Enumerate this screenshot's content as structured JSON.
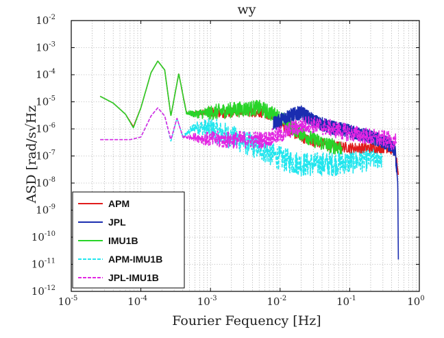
{
  "chart_data": {
    "type": "line",
    "title": "wy",
    "xlabel": "Fourier Fequency [Hz]",
    "ylabel": "ASD [rad/s√Hz",
    "x_scale": "log",
    "y_scale": "log",
    "xlim": [
      1e-05,
      1
    ],
    "ylim": [
      1e-12,
      0.01
    ],
    "grid": true,
    "legend_position": "bottom-left",
    "x_ticks": [
      {
        "base": "10",
        "exp": "-5"
      },
      {
        "base": "10",
        "exp": "-4"
      },
      {
        "base": "10",
        "exp": "-3"
      },
      {
        "base": "10",
        "exp": "-2"
      },
      {
        "base": "10",
        "exp": "-1"
      },
      {
        "base": "10",
        "exp": "0"
      }
    ],
    "y_ticks": [
      {
        "base": "10",
        "exp": "-12"
      },
      {
        "base": "10",
        "exp": "-11"
      },
      {
        "base": "10",
        "exp": "-10"
      },
      {
        "base": "10",
        "exp": "-9"
      },
      {
        "base": "10",
        "exp": "-8"
      },
      {
        "base": "10",
        "exp": "-7"
      },
      {
        "base": "10",
        "exp": "-6"
      },
      {
        "base": "10",
        "exp": "-5"
      },
      {
        "base": "10",
        "exp": "-4"
      },
      {
        "base": "10",
        "exp": "-3"
      },
      {
        "base": "10",
        "exp": "-2"
      }
    ],
    "series": [
      {
        "name": "APM",
        "color": "#e01b1b",
        "dash": "solid",
        "noise": 0.12,
        "points": [
          [
            2.6e-05,
            1.6e-05
          ],
          [
            4e-05,
            9e-06
          ],
          [
            6e-05,
            3.5e-06
          ],
          [
            7.8e-05,
            1.2e-06
          ],
          [
            0.0001,
            6e-06
          ],
          [
            0.00014,
            0.00012
          ],
          [
            0.000175,
            0.00032
          ],
          [
            0.00022,
            0.00015
          ],
          [
            0.00027,
            3e-06
          ],
          [
            0.00035,
            0.00011
          ],
          [
            0.00045,
            4e-06
          ],
          [
            0.0006,
            3.5e-06
          ],
          [
            0.0008,
            4.5e-06
          ],
          [
            0.0015,
            4e-06
          ],
          [
            0.003,
            4.5e-06
          ],
          [
            0.006,
            4e-06
          ],
          [
            0.01,
            1.6e-06
          ],
          [
            0.015,
            7e-07
          ],
          [
            0.025,
            4e-07
          ],
          [
            0.05,
            2.5e-07
          ],
          [
            0.1,
            2e-07
          ],
          [
            0.2,
            2e-07
          ],
          [
            0.35,
            2e-07
          ],
          [
            0.45,
            1.5e-07
          ],
          [
            0.5,
            2e-08
          ]
        ]
      },
      {
        "name": "JPL",
        "color": "#1a2db0",
        "dash": "solid",
        "noise": 0.16,
        "points": [
          [
            0.008,
            1.5e-06
          ],
          [
            0.013,
            3e-06
          ],
          [
            0.02,
            4e-06
          ],
          [
            0.03,
            2e-06
          ],
          [
            0.05,
            1.2e-06
          ],
          [
            0.1,
            8e-07
          ],
          [
            0.2,
            5e-07
          ],
          [
            0.35,
            3e-07
          ],
          [
            0.45,
            1.5e-07
          ],
          [
            0.49,
            1e-08
          ],
          [
            0.5,
            1.5e-11
          ]
        ]
      },
      {
        "name": "IMU1B",
        "color": "#28d428",
        "dash": "solid",
        "noise": 0.18,
        "points": [
          [
            2.6e-05,
            1.6e-05
          ],
          [
            4e-05,
            9e-06
          ],
          [
            6e-05,
            3.5e-06
          ],
          [
            7.8e-05,
            1.1e-06
          ],
          [
            0.0001,
            6e-06
          ],
          [
            0.00014,
            0.00012
          ],
          [
            0.000175,
            0.00032
          ],
          [
            0.00022,
            0.00015
          ],
          [
            0.00027,
            3e-06
          ],
          [
            0.00035,
            0.00011
          ],
          [
            0.00045,
            4e-06
          ],
          [
            0.0006,
            3.5e-06
          ],
          [
            0.001,
            4e-06
          ],
          [
            0.002,
            5e-06
          ],
          [
            0.005,
            6e-06
          ],
          [
            0.009,
            3e-06
          ],
          [
            0.013,
            1.5e-06
          ],
          [
            0.02,
            7e-07
          ],
          [
            0.03,
            4e-07
          ],
          [
            0.05,
            2.5e-07
          ],
          [
            0.08,
            2e-07
          ]
        ]
      },
      {
        "name": "APM-IMU1B",
        "color": "#22e6ee",
        "dash": "dashed",
        "noise": 0.28,
        "points": [
          [
            2.6e-05,
            4e-07
          ],
          [
            7e-05,
            4e-07
          ],
          [
            0.0001,
            5e-07
          ],
          [
            0.00014,
            3e-06
          ],
          [
            0.000175,
            6e-06
          ],
          [
            0.00022,
            3e-06
          ],
          [
            0.00027,
            3.5e-07
          ],
          [
            0.00033,
            2.5e-06
          ],
          [
            0.0004,
            5e-07
          ],
          [
            0.0006,
            1.2e-06
          ],
          [
            0.001,
            1e-06
          ],
          [
            0.002,
            5e-07
          ],
          [
            0.005,
            2e-07
          ],
          [
            0.01,
            8e-08
          ],
          [
            0.02,
            5e-08
          ],
          [
            0.05,
            5e-08
          ],
          [
            0.1,
            6e-08
          ],
          [
            0.2,
            8e-08
          ],
          [
            0.3,
            1e-07
          ]
        ]
      },
      {
        "name": "JPL-IMU1B",
        "color": "#e225e2",
        "dash": "dashed",
        "noise": 0.2,
        "points": [
          [
            2.6e-05,
            4e-07
          ],
          [
            7e-05,
            4e-07
          ],
          [
            0.0001,
            5e-07
          ],
          [
            0.00014,
            3e-06
          ],
          [
            0.000175,
            6e-06
          ],
          [
            0.00022,
            3e-06
          ],
          [
            0.00027,
            4e-07
          ],
          [
            0.00033,
            2.5e-06
          ],
          [
            0.0004,
            5e-07
          ],
          [
            0.0006,
            5e-07
          ],
          [
            0.001,
            4e-07
          ],
          [
            0.003,
            4e-07
          ],
          [
            0.006,
            4e-07
          ],
          [
            0.01,
            6e-07
          ],
          [
            0.015,
            1e-06
          ],
          [
            0.025,
            1.5e-06
          ],
          [
            0.05,
            1.1e-06
          ],
          [
            0.1,
            7e-07
          ],
          [
            0.2,
            5e-07
          ],
          [
            0.35,
            4e-07
          ],
          [
            0.48,
            3e-07
          ]
        ]
      }
    ]
  }
}
